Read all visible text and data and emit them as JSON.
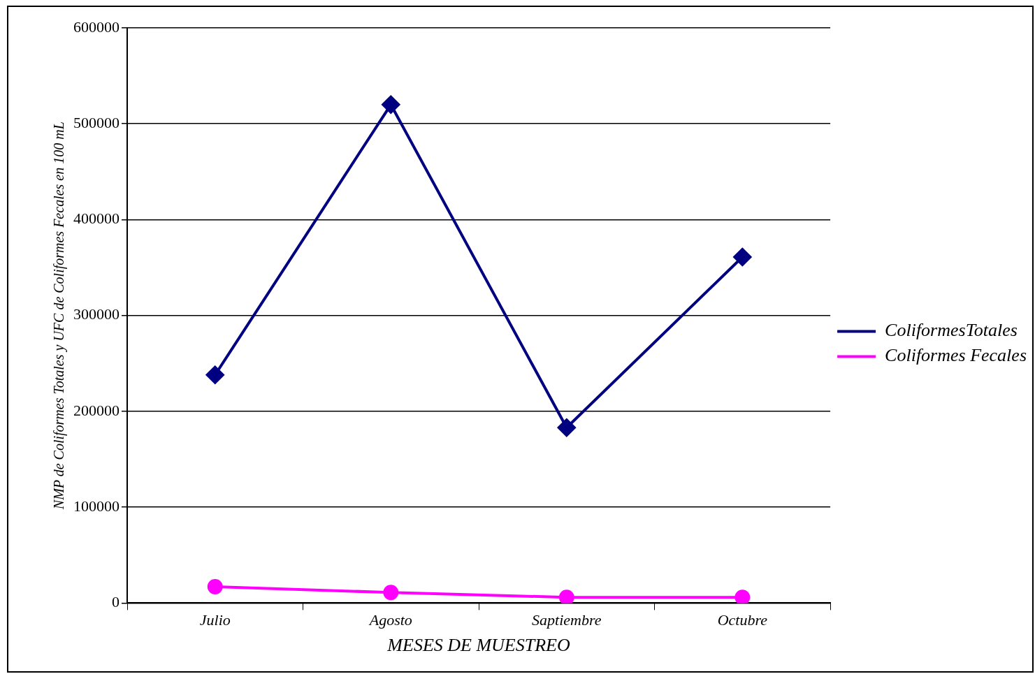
{
  "chart_data": {
    "type": "line",
    "xlabel": "MESES DE MUESTREO",
    "ylabel": "NMP de Coliformes Totales y UFC de Coliformes Fecales en 100 mL",
    "categories": [
      "Julio",
      "Agosto",
      "Saptiembre",
      "Octubre"
    ],
    "series": [
      {
        "name": "ColiformesTotales",
        "color": "#000080",
        "marker": "diamond",
        "values": [
          238000,
          520000,
          183000,
          361000
        ]
      },
      {
        "name": "Coliformes Fecales",
        "color": "#ff00ff",
        "marker": "circle",
        "values": [
          17000,
          11000,
          6000,
          6000
        ]
      }
    ],
    "ylim": [
      0,
      600000
    ],
    "yticks": [
      0,
      100000,
      200000,
      300000,
      400000,
      500000,
      600000
    ],
    "grid": "y",
    "legend": "right",
    "line_style": "solid"
  }
}
